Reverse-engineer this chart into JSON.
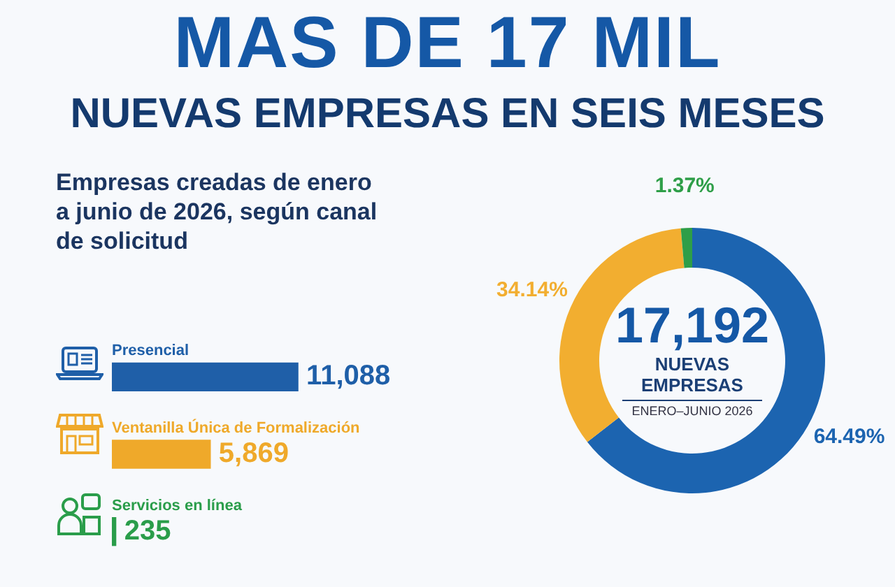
{
  "chart_data": [
    {
      "type": "bar",
      "orientation": "horizontal",
      "title": "MAS DE 17 MIL",
      "subtitle": "NUEVAS EMPRESAS EN SEIS MESES",
      "annotations": [
        "Empresas creadas de enero a junio de 2026, según canal de solicitud"
      ],
      "categories": [
        "Presencial",
        "Ventanilla Única de Formalización",
        "Servicios en línea"
      ],
      "values": [
        11088,
        5869,
        235
      ],
      "colors": [
        "#1f5fa8",
        "#efa92a",
        "#2a9d4a"
      ],
      "value_labels": [
        "11,088",
        "5,869",
        "235"
      ]
    },
    {
      "type": "donut",
      "categories": [
        null,
        null,
        null
      ],
      "values": [
        64.49,
        34.14,
        1.37
      ],
      "colors": [
        "#1c64b0",
        "#f2ae30",
        "#2e9e48"
      ],
      "value_labels": [
        "64.49%",
        "34.14%",
        "1.37%"
      ],
      "annotations": [
        "17,192",
        "NUEVAS EMPRESAS",
        "ENERO–JUNIO 2026"
      ]
    }
  ]
}
